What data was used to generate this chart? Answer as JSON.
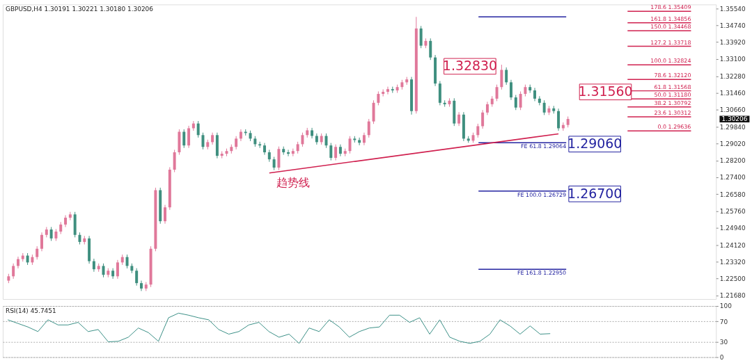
{
  "chart_data": [
    {
      "type": "candlestick",
      "title": "GBPUSD,H4 1.30191 1.30221 1.30180 1.30206",
      "tick_labels": "y",
      "grid": false,
      "ylim": [
        1.2151,
        1.3574
      ],
      "yticks": [
        {
          "value": 1.3554,
          "label": "1.35540"
        },
        {
          "value": 1.3474,
          "label": "1.34740"
        },
        {
          "value": 1.3392,
          "label": "1.33920"
        },
        {
          "value": 1.331,
          "label": "1.33100"
        },
        {
          "value": 1.3228,
          "label": "1.32280"
        },
        {
          "value": 1.3146,
          "label": "1.31460"
        },
        {
          "value": 1.3066,
          "label": "1.30660"
        },
        {
          "value": 1.2984,
          "label": "1.29840"
        },
        {
          "value": 1.2902,
          "label": "1.29020"
        },
        {
          "value": 1.282,
          "label": "1.28200"
        },
        {
          "value": 1.274,
          "label": "1.27400"
        },
        {
          "value": 1.2658,
          "label": "1.26580"
        },
        {
          "value": 1.2576,
          "label": "1.25760"
        },
        {
          "value": 1.2494,
          "label": "1.24940"
        },
        {
          "value": 1.2412,
          "label": "1.24120"
        },
        {
          "value": 1.2332,
          "label": "1.23320"
        },
        {
          "value": 1.225,
          "label": "1.22500"
        },
        {
          "value": 1.2168,
          "label": "1.21680"
        }
      ],
      "categories": [
        null,
        null,
        null,
        null,
        null,
        null,
        null,
        null,
        null,
        null,
        null,
        null,
        null,
        null,
        null,
        null,
        null,
        null,
        null,
        null,
        null,
        null,
        null,
        null,
        null,
        null,
        null,
        null,
        null,
        null,
        null,
        null,
        null,
        null,
        null,
        null,
        null,
        null,
        null,
        null,
        null,
        null,
        null,
        null,
        null,
        null,
        null,
        null,
        null,
        null,
        null,
        null,
        null,
        null,
        null,
        null,
        null,
        null,
        null,
        null,
        null,
        null,
        null,
        null,
        null,
        null,
        null,
        null,
        null,
        null,
        null,
        null,
        null,
        null,
        null,
        null,
        null,
        null,
        null,
        null,
        null,
        null,
        null,
        null,
        null,
        null,
        null,
        null,
        null,
        null,
        null,
        null,
        null,
        null,
        null,
        null,
        null,
        null,
        null,
        null,
        null,
        null,
        null,
        null,
        null,
        null,
        null,
        null,
        null,
        null,
        null,
        null,
        null,
        null,
        null,
        null,
        null,
        null,
        null,
        null,
        null,
        null,
        null,
        null,
        null,
        null,
        null,
        null,
        null,
        null,
        null,
        null,
        null,
        null,
        null,
        null,
        null,
        null,
        null,
        null,
        null,
        null,
        null,
        null,
        null,
        null,
        null,
        null,
        null
      ],
      "ohlc": [
        [
          1.224,
          1.2273,
          1.2228,
          1.2261
        ],
        [
          1.2261,
          1.2323,
          1.2249,
          1.2311
        ],
        [
          1.2311,
          1.2356,
          1.2299,
          1.2344
        ],
        [
          1.2344,
          1.2373,
          1.2332,
          1.2361
        ],
        [
          1.2361,
          1.2373,
          1.2316,
          1.2328
        ],
        [
          1.2328,
          1.2366,
          1.2316,
          1.2354
        ],
        [
          1.2354,
          1.2406,
          1.2342,
          1.2394
        ],
        [
          1.2394,
          1.2473,
          1.2382,
          1.2461
        ],
        [
          1.2461,
          1.2499,
          1.2449,
          1.2487
        ],
        [
          1.2487,
          1.2499,
          1.2432,
          1.2444
        ],
        [
          1.2444,
          1.2489,
          1.2432,
          1.2477
        ],
        [
          1.2477,
          1.2523,
          1.2465,
          1.2511
        ],
        [
          1.2511,
          1.2556,
          1.2499,
          1.2544
        ],
        [
          1.2544,
          1.2572,
          1.2532,
          1.256
        ],
        [
          1.256,
          1.2572,
          1.2449,
          1.2461
        ],
        [
          1.2461,
          1.2473,
          1.2415,
          1.2427
        ],
        [
          1.2427,
          1.2456,
          1.2415,
          1.2444
        ],
        [
          1.2444,
          1.2456,
          1.2322,
          1.2334
        ],
        [
          1.2334,
          1.2346,
          1.2283,
          1.2295
        ],
        [
          1.2295,
          1.2323,
          1.2283,
          1.2311
        ],
        [
          1.2311,
          1.2323,
          1.2256,
          1.2268
        ],
        [
          1.2268,
          1.23,
          1.2256,
          1.2288
        ],
        [
          1.2288,
          1.23,
          1.2249,
          1.2261
        ],
        [
          1.2261,
          1.234,
          1.2249,
          1.2328
        ],
        [
          1.2328,
          1.2366,
          1.2316,
          1.2354
        ],
        [
          1.2354,
          1.2366,
          1.2299,
          1.2311
        ],
        [
          1.2311,
          1.2323,
          1.2276,
          1.2288
        ],
        [
          1.2288,
          1.23,
          1.2216,
          1.2228
        ],
        [
          1.2228,
          1.224,
          1.219,
          1.2202
        ],
        [
          1.2202,
          1.2233,
          1.219,
          1.2221
        ],
        [
          1.2221,
          1.2406,
          1.2209,
          1.2394
        ],
        [
          1.2394,
          1.2689,
          1.2382,
          1.2677
        ],
        [
          1.2677,
          1.2689,
          1.2515,
          1.2527
        ],
        [
          1.2527,
          1.2606,
          1.2515,
          1.2594
        ],
        [
          1.2594,
          1.2788,
          1.2582,
          1.2776
        ],
        [
          1.2776,
          1.2872,
          1.2764,
          1.286
        ],
        [
          1.286,
          1.2971,
          1.2848,
          1.2959
        ],
        [
          1.2959,
          1.2971,
          1.2881,
          1.2893
        ],
        [
          1.2893,
          1.2988,
          1.2881,
          1.2976
        ],
        [
          1.2976,
          1.3011,
          1.2964,
          1.2999
        ],
        [
          1.2999,
          1.3011,
          1.2931,
          1.2943
        ],
        [
          1.2943,
          1.2955,
          1.2874,
          1.2886
        ],
        [
          1.2886,
          1.2921,
          1.2874,
          1.2909
        ],
        [
          1.2909,
          1.2955,
          1.2897,
          1.2943
        ],
        [
          1.2943,
          1.2955,
          1.2831,
          1.2843
        ],
        [
          1.2843,
          1.2865,
          1.2831,
          1.2853
        ],
        [
          1.2853,
          1.2878,
          1.2841,
          1.2866
        ],
        [
          1.2866,
          1.2898,
          1.2854,
          1.2886
        ],
        [
          1.2886,
          1.2938,
          1.2874,
          1.2926
        ],
        [
          1.2926,
          1.2971,
          1.2914,
          1.2959
        ],
        [
          1.2959,
          1.2971,
          1.2941,
          1.2953
        ],
        [
          1.2953,
          1.2965,
          1.2914,
          1.2926
        ],
        [
          1.2926,
          1.2938,
          1.2887,
          1.2899
        ],
        [
          1.2899,
          1.2911,
          1.2881,
          1.2893
        ],
        [
          1.2893,
          1.2905,
          1.2848,
          1.286
        ],
        [
          1.286,
          1.2872,
          1.2814,
          1.2826
        ],
        [
          1.2826,
          1.2838,
          1.2774,
          1.2786
        ],
        [
          1.2786,
          1.2888,
          1.2774,
          1.2876
        ],
        [
          1.2876,
          1.2888,
          1.2848,
          1.286
        ],
        [
          1.286,
          1.2872,
          1.2841,
          1.2853
        ],
        [
          1.2853,
          1.2878,
          1.2841,
          1.2866
        ],
        [
          1.2866,
          1.2911,
          1.2854,
          1.2899
        ],
        [
          1.2899,
          1.2955,
          1.2887,
          1.2943
        ],
        [
          1.2943,
          1.2978,
          1.2931,
          1.2966
        ],
        [
          1.2966,
          1.2978,
          1.2927,
          1.2939
        ],
        [
          1.2939,
          1.2951,
          1.2897,
          1.2909
        ],
        [
          1.2909,
          1.2951,
          1.2897,
          1.2939
        ],
        [
          1.2939,
          1.2951,
          1.2881,
          1.2893
        ],
        [
          1.2893,
          1.2905,
          1.2821,
          1.2833
        ],
        [
          1.2833,
          1.2898,
          1.2821,
          1.2886
        ],
        [
          1.2886,
          1.2898,
          1.2841,
          1.2853
        ],
        [
          1.2853,
          1.2878,
          1.2841,
          1.2866
        ],
        [
          1.2866,
          1.2938,
          1.2854,
          1.2926
        ],
        [
          1.2926,
          1.2938,
          1.2907,
          1.2919
        ],
        [
          1.2919,
          1.2931,
          1.2894,
          1.2906
        ],
        [
          1.2906,
          1.2955,
          1.2894,
          1.2943
        ],
        [
          1.2943,
          1.3021,
          1.2931,
          1.3009
        ],
        [
          1.3009,
          1.3111,
          1.2997,
          1.3099
        ],
        [
          1.3099,
          1.3154,
          1.3087,
          1.3142
        ],
        [
          1.3142,
          1.3164,
          1.313,
          1.3152
        ],
        [
          1.3152,
          1.3177,
          1.314,
          1.3165
        ],
        [
          1.3165,
          1.3177,
          1.3147,
          1.3159
        ],
        [
          1.3159,
          1.3187,
          1.3147,
          1.3175
        ],
        [
          1.3175,
          1.321,
          1.3163,
          1.3198
        ],
        [
          1.3198,
          1.3224,
          1.3186,
          1.3212
        ],
        [
          1.3212,
          1.3224,
          1.3042,
          1.3059
        ],
        [
          1.3059,
          1.3514,
          1.3047,
          1.3458
        ],
        [
          1.3458,
          1.347,
          1.3363,
          1.3375
        ],
        [
          1.3375,
          1.341,
          1.3363,
          1.3398
        ],
        [
          1.3398,
          1.341,
          1.3306,
          1.3318
        ],
        [
          1.3318,
          1.333,
          1.318,
          1.3192
        ],
        [
          1.3192,
          1.3204,
          1.3087,
          1.3099
        ],
        [
          1.3099,
          1.3111,
          1.308,
          1.3092
        ],
        [
          1.3092,
          1.3121,
          1.308,
          1.3109
        ],
        [
          1.3109,
          1.3121,
          1.2987,
          1.2999
        ],
        [
          1.2999,
          1.3054,
          1.2987,
          1.3042
        ],
        [
          1.3042,
          1.3054,
          1.2914,
          1.2926
        ],
        [
          1.2926,
          1.2938,
          1.2906,
          1.2916
        ],
        [
          1.2916,
          1.2955,
          1.2906,
          1.2943
        ],
        [
          1.2943,
          1.2998,
          1.2931,
          1.2986
        ],
        [
          1.2986,
          1.3064,
          1.2974,
          1.3052
        ],
        [
          1.3052,
          1.3104,
          1.304,
          1.3092
        ],
        [
          1.3092,
          1.3131,
          1.308,
          1.3119
        ],
        [
          1.3119,
          1.3187,
          1.3107,
          1.3175
        ],
        [
          1.3175,
          1.3283,
          1.3163,
          1.3258
        ],
        [
          1.3258,
          1.327,
          1.3186,
          1.3198
        ],
        [
          1.3198,
          1.321,
          1.3113,
          1.3125
        ],
        [
          1.3125,
          1.3137,
          1.3064,
          1.3076
        ],
        [
          1.3076,
          1.3154,
          1.3064,
          1.3142
        ],
        [
          1.3142,
          1.3187,
          1.313,
          1.3175
        ],
        [
          1.3175,
          1.3187,
          1.3147,
          1.3159
        ],
        [
          1.3159,
          1.3171,
          1.3107,
          1.3119
        ],
        [
          1.3119,
          1.3131,
          1.3087,
          1.3099
        ],
        [
          1.3099,
          1.3111,
          1.304,
          1.3052
        ],
        [
          1.3052,
          1.3084,
          1.304,
          1.3072
        ],
        [
          1.3072,
          1.3084,
          1.3047,
          1.3059
        ],
        [
          1.3059,
          1.3071,
          1.2964,
          1.2976
        ],
        [
          1.2976,
          1.3004,
          1.2964,
          1.2992
        ],
        [
          1.2992,
          1.3033,
          1.298,
          1.3021
        ],
        null,
        null,
        null,
        null,
        null,
        null,
        null,
        null,
        null,
        null,
        null,
        null,
        null,
        null,
        null,
        null,
        null,
        null,
        null,
        null,
        null,
        null,
        null,
        null,
        null,
        null,
        null,
        null,
        null,
        null
      ],
      "series": [
        {
          "type": "line",
          "color": "#d0204f",
          "values": [
            null,
            null,
            null,
            null,
            null,
            null,
            null,
            null,
            null,
            null,
            null,
            null,
            null,
            null,
            null,
            null,
            null,
            null,
            null,
            null,
            null,
            null,
            null,
            null,
            null,
            null,
            null,
            null,
            null,
            null,
            null,
            null,
            null,
            null,
            null,
            null,
            null,
            null,
            null,
            null,
            null,
            null,
            null,
            null,
            null,
            null,
            null,
            null,
            null,
            null,
            null,
            null,
            null,
            null,
            null,
            1.276,
            null,
            null,
            null,
            null,
            null,
            null,
            null,
            null,
            null,
            null,
            null,
            null,
            null,
            null,
            null,
            null,
            null,
            null,
            null,
            null,
            null,
            null,
            null,
            null,
            null,
            null,
            null,
            null,
            null,
            null,
            null,
            null,
            null,
            null,
            null,
            null,
            null,
            null,
            null,
            null,
            null,
            null,
            null,
            null,
            null,
            null,
            null,
            null,
            null,
            null,
            null,
            null,
            null,
            null,
            null,
            null,
            null,
            null,
            null,
            null,
            1.2949,
            null,
            null,
            null,
            null,
            null,
            null,
            null,
            null,
            null,
            null,
            null,
            null,
            null,
            null,
            null,
            null,
            null,
            null,
            null,
            null,
            null,
            null,
            null,
            null,
            null,
            null,
            null,
            null,
            null,
            null,
            null,
            null
          ]
        }
      ],
      "ref_lines": [
        {
          "axis": "y",
          "value": 1.35409,
          "label": "178.6 1.35409",
          "color": "#d0204f"
        },
        {
          "axis": "y",
          "value": 1.34856,
          "label": "161.8 1.34856",
          "color": "#d0204f"
        },
        {
          "axis": "y",
          "value": 1.34468,
          "label": "150.0 1.34468",
          "color": "#d0204f"
        },
        {
          "axis": "y",
          "value": 1.33718,
          "label": "127.2 1.33718",
          "color": "#d0204f"
        },
        {
          "axis": "y",
          "value": 1.32824,
          "label": "100.0 1.32824",
          "color": "#d0204f"
        },
        {
          "axis": "y",
          "value": 1.3212,
          "label": "78.6 1.32120",
          "color": "#d0204f"
        },
        {
          "axis": "y",
          "value": 1.31568,
          "label": "61.8 1.31568",
          "color": "#d0204f"
        },
        {
          "axis": "y",
          "value": 1.3118,
          "label": "50.0 1.31180",
          "color": "#d0204f"
        },
        {
          "axis": "y",
          "value": 1.30792,
          "label": "38.2 1.30792",
          "color": "#d0204f"
        },
        {
          "axis": "y",
          "value": 1.30312,
          "label": "23.6 1.30312",
          "color": "#d0204f"
        },
        {
          "axis": "y",
          "value": 1.29636,
          "label": "0.0 1.29636",
          "color": "#d0204f"
        },
        {
          "axis": "y",
          "value": 1.3514,
          "color": "#2323a0"
        },
        {
          "axis": "y",
          "value": 1.29064,
          "label": "FE 61.8 1.29064",
          "color": "#2323a0"
        },
        {
          "axis": "y",
          "value": 1.26729,
          "label": "FE 100.0 1.26729",
          "color": "#2323a0"
        },
        {
          "axis": "y",
          "value": 1.2295,
          "label": "FE 161.8 1.22950",
          "color": "#2323a0"
        }
      ],
      "annotations": [
        "1.32830",
        "1.31560",
        "1.29060",
        "1.26700",
        "1.30206",
        "趋势线"
      ]
    },
    {
      "type": "line",
      "title": "RSI(14) 45.7451",
      "tick_labels": "y",
      "grid": "y",
      "ylim": [
        0,
        100
      ],
      "yticks": [
        0,
        30,
        70,
        100
      ],
      "categories": [
        null,
        null,
        null,
        null,
        null,
        null,
        null,
        null,
        null,
        null,
        null,
        null,
        null,
        null,
        null,
        null,
        null,
        null,
        null,
        null,
        null,
        null,
        null,
        null,
        null,
        null,
        null,
        null,
        null,
        null,
        null,
        null,
        null,
        null,
        null,
        null,
        null,
        null,
        null,
        null,
        null,
        null,
        null,
        null,
        null,
        null,
        null,
        null,
        null,
        null,
        null,
        null,
        null,
        null,
        null
      ],
      "series": [
        {
          "color": "#3a8f86",
          "values": [
            73,
            66,
            59,
            50,
            73,
            63,
            63,
            68,
            50,
            54,
            30,
            31,
            39,
            57,
            48,
            31,
            77,
            86,
            82,
            77,
            73,
            54,
            45,
            50,
            63,
            68,
            50,
            39,
            45,
            27,
            57,
            50,
            73,
            59,
            39,
            50,
            57,
            59,
            82,
            82,
            68,
            77,
            45,
            73,
            39,
            31,
            27,
            31,
            45,
            73,
            61,
            45,
            61,
            45,
            46
          ]
        }
      ]
    }
  ]
}
